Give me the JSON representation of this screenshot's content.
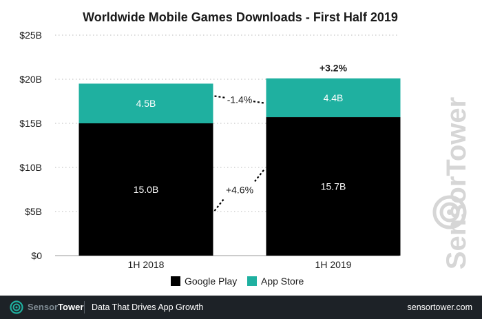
{
  "chart_data": {
    "type": "bar",
    "stacked": true,
    "title": "Worldwide Mobile Games Downloads - First Half 2019",
    "categories": [
      "1H 2018",
      "1H 2019"
    ],
    "series": [
      {
        "name": "Google Play",
        "values": [
          15.0,
          15.7
        ],
        "labels": [
          "15.0B",
          "15.7B"
        ],
        "color": "#000000"
      },
      {
        "name": "App Store",
        "values": [
          4.5,
          4.4
        ],
        "labels": [
          "4.5B",
          "4.4B"
        ],
        "color": "#1fb0a0"
      }
    ],
    "ylim": [
      0,
      25
    ],
    "yticks": [
      0,
      5,
      10,
      15,
      20,
      25
    ],
    "ytick_labels": [
      "$0",
      "$5B",
      "$10B",
      "$15B",
      "$20B",
      "$25B"
    ],
    "grid": true,
    "legend": "bottom",
    "annotations": {
      "total_change": "+3.2%",
      "app_store_change": "-1.4%",
      "google_play_change": "+4.6%"
    }
  },
  "watermark": "SensorTower",
  "footer": {
    "brand_part1": "Sensor",
    "brand_part2": "Tower",
    "tagline": "Data That Drives App Growth",
    "site": "sensortower.com"
  }
}
